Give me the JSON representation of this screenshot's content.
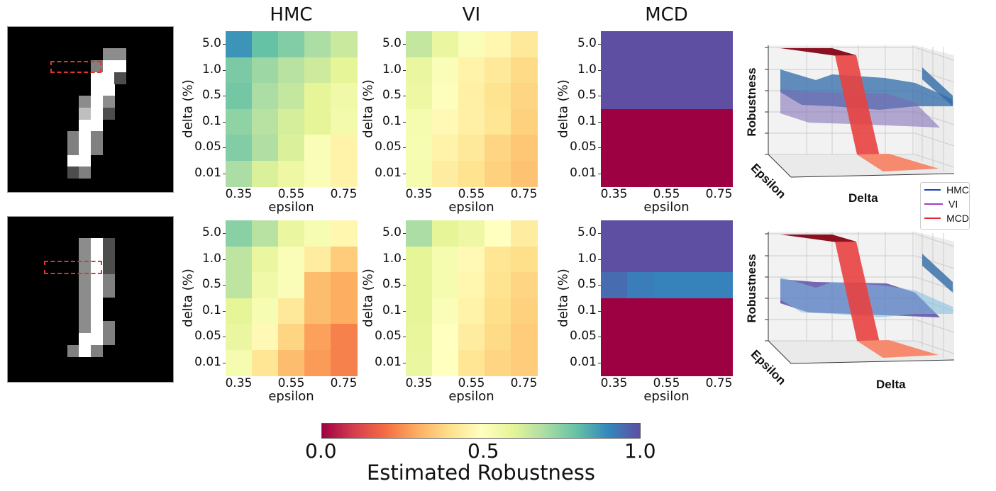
{
  "chart_data": [
    {
      "type": "heatmap",
      "panel": "top-HMC",
      "title": "HMC",
      "xlabel": "epsilon",
      "ylabel": "delta (%)",
      "x": [
        "0.35",
        "0.45",
        "0.55",
        "0.65",
        "0.75"
      ],
      "x_tick_labels": [
        "0.35",
        "0.55",
        "0.75"
      ],
      "y": [
        "5.0",
        "1.0",
        "0.5",
        "0.1",
        "0.05",
        "0.01"
      ],
      "values": [
        [
          0.88,
          0.8,
          0.76,
          0.7,
          0.65
        ],
        [
          0.77,
          0.72,
          0.68,
          0.64,
          0.6
        ],
        [
          0.78,
          0.7,
          0.66,
          0.6,
          0.56
        ],
        [
          0.74,
          0.68,
          0.63,
          0.6,
          0.55
        ],
        [
          0.76,
          0.69,
          0.62,
          0.52,
          0.46
        ],
        [
          0.7,
          0.62,
          0.57,
          0.52,
          0.46
        ]
      ]
    },
    {
      "type": "heatmap",
      "panel": "top-VI",
      "title": "VI",
      "xlabel": "epsilon",
      "ylabel": "delta (%)",
      "x": [
        "0.35",
        "0.45",
        "0.55",
        "0.65",
        "0.75"
      ],
      "x_tick_labels": [
        "0.35",
        "0.55",
        "0.75"
      ],
      "y": [
        "5.0",
        "1.0",
        "0.5",
        "0.1",
        "0.05",
        "0.01"
      ],
      "values": [
        [
          0.66,
          0.58,
          0.52,
          0.47,
          0.43
        ],
        [
          0.58,
          0.52,
          0.46,
          0.43,
          0.39
        ],
        [
          0.57,
          0.51,
          0.45,
          0.41,
          0.38
        ],
        [
          0.54,
          0.48,
          0.45,
          0.42,
          0.37
        ],
        [
          0.53,
          0.46,
          0.43,
          0.38,
          0.35
        ],
        [
          0.54,
          0.44,
          0.41,
          0.37,
          0.34
        ]
      ]
    },
    {
      "type": "heatmap",
      "panel": "top-MCD",
      "title": "MCD",
      "xlabel": "epsilon",
      "ylabel": "delta (%)",
      "x": [
        "0.35",
        "0.45",
        "0.55",
        "0.65",
        "0.75"
      ],
      "x_tick_labels": [
        "0.35",
        "0.55",
        "0.75"
      ],
      "y": [
        "5.0",
        "1.0",
        "0.5",
        "0.1",
        "0.05",
        "0.01"
      ],
      "values": [
        [
          1,
          1,
          1,
          1,
          1
        ],
        [
          1,
          1,
          1,
          1,
          1
        ],
        [
          1,
          1,
          1,
          1,
          1
        ],
        [
          0,
          0,
          0,
          0,
          0
        ],
        [
          0,
          0,
          0,
          0,
          0
        ],
        [
          0,
          0,
          0,
          0,
          0
        ]
      ]
    },
    {
      "type": "heatmap",
      "panel": "bottom-HMC",
      "xlabel": "epsilon",
      "ylabel": "delta (%)",
      "x": [
        "0.35",
        "0.45",
        "0.55",
        "0.65",
        "0.75"
      ],
      "x_tick_labels": [
        "0.35",
        "0.55",
        "0.75"
      ],
      "y": [
        "5.0",
        "1.0",
        "0.5",
        "0.1",
        "0.05",
        "0.01"
      ],
      "values": [
        [
          0.75,
          0.68,
          0.58,
          0.53,
          0.47
        ],
        [
          0.67,
          0.58,
          0.52,
          0.44,
          0.36
        ],
        [
          0.67,
          0.56,
          0.52,
          0.33,
          0.3
        ],
        [
          0.6,
          0.53,
          0.43,
          0.33,
          0.3
        ],
        [
          0.58,
          0.48,
          0.38,
          0.28,
          0.23
        ],
        [
          0.54,
          0.42,
          0.33,
          0.27,
          0.23
        ]
      ]
    },
    {
      "type": "heatmap",
      "panel": "bottom-VI",
      "xlabel": "epsilon",
      "ylabel": "delta (%)",
      "x": [
        "0.35",
        "0.45",
        "0.55",
        "0.65",
        "0.75"
      ],
      "x_tick_labels": [
        "0.35",
        "0.55",
        "0.75"
      ],
      "y": [
        "5.0",
        "1.0",
        "0.5",
        "0.1",
        "0.05",
        "0.01"
      ],
      "values": [
        [
          0.7,
          0.6,
          0.57,
          0.5,
          0.44
        ],
        [
          0.6,
          0.54,
          0.48,
          0.42,
          0.4
        ],
        [
          0.6,
          0.54,
          0.47,
          0.41,
          0.38
        ],
        [
          0.6,
          0.52,
          0.46,
          0.4,
          0.37
        ],
        [
          0.59,
          0.5,
          0.44,
          0.39,
          0.36
        ],
        [
          0.58,
          0.5,
          0.42,
          0.38,
          0.36
        ]
      ]
    },
    {
      "type": "heatmap",
      "panel": "bottom-MCD",
      "xlabel": "epsilon",
      "ylabel": "delta (%)",
      "x": [
        "0.35",
        "0.45",
        "0.55",
        "0.65",
        "0.75"
      ],
      "x_tick_labels": [
        "0.35",
        "0.55",
        "0.75"
      ],
      "y": [
        "5.0",
        "1.0",
        "0.5",
        "0.1",
        "0.05",
        "0.01"
      ],
      "values": [
        [
          1,
          1,
          1,
          1,
          1
        ],
        [
          1,
          1,
          1,
          1,
          1
        ],
        [
          0.95,
          0.92,
          0.91,
          0.91,
          0.91
        ],
        [
          0,
          0,
          0,
          0,
          0
        ],
        [
          0,
          0,
          0,
          0,
          0
        ],
        [
          0,
          0,
          0,
          0,
          0
        ]
      ]
    }
  ],
  "colorbar": {
    "colormap": "Spectral",
    "range": [
      0,
      1
    ],
    "ticks": [
      "0.0",
      "0.5",
      "1.0"
    ],
    "label": "Estimated Robustness",
    "stops": [
      "#9e0142",
      "#d53e4f",
      "#f46d43",
      "#fdae61",
      "#fee08b",
      "#ffffbf",
      "#e6f598",
      "#abdda4",
      "#66c2a5",
      "#3288bd",
      "#5e4fa2"
    ]
  },
  "surface_plots": {
    "zlabel": "Robustness",
    "xlabel": "Epsilon",
    "ylabel": "Delta",
    "legend": [
      {
        "name": "HMC",
        "color": "#1f3fbf"
      },
      {
        "name": "VI",
        "color": "#a23fbf"
      },
      {
        "name": "MCD",
        "color": "#e0282e"
      }
    ]
  }
}
